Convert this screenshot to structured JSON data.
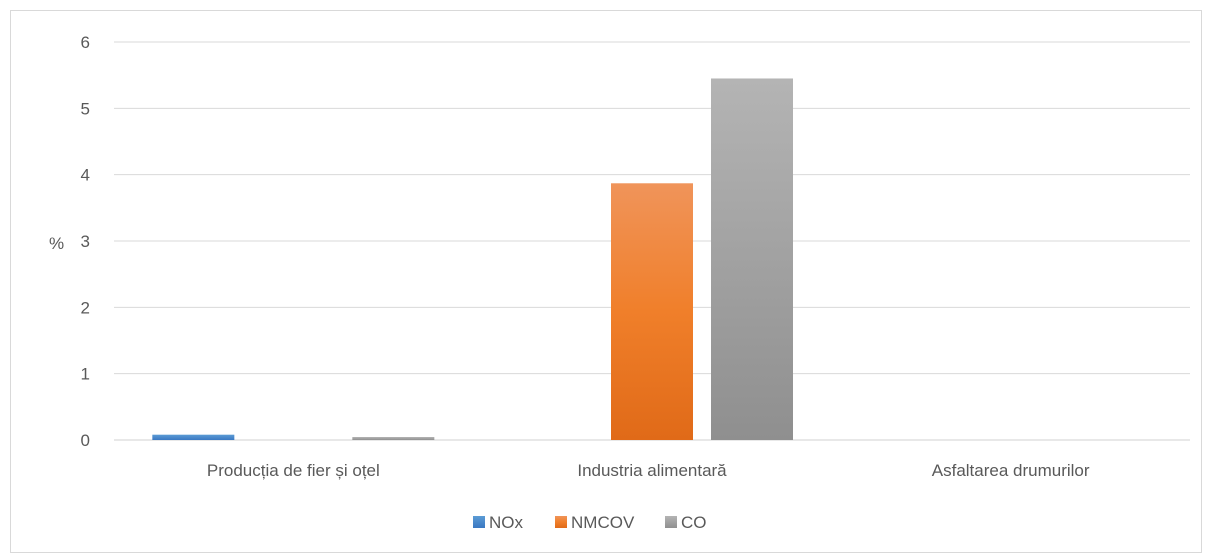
{
  "chart_data": {
    "type": "bar",
    "ylabel": "%",
    "ylim": [
      0,
      6
    ],
    "yticks": [
      0,
      1,
      2,
      3,
      4,
      5,
      6
    ],
    "categories": [
      "Producția de fier și oțel",
      "Industria alimentară",
      "Asfaltarea drumurilor"
    ],
    "series": [
      {
        "name": "NOx",
        "values": [
          0.08,
          0,
          0
        ],
        "color": "#4f8fd6"
      },
      {
        "name": "NMCOV",
        "values": [
          0,
          3.87,
          0
        ],
        "color": "#ed7d31"
      },
      {
        "name": "CO",
        "values": [
          0.01,
          5.45,
          0
        ],
        "color": "#a5a5a5"
      }
    ],
    "grid": true,
    "legend_position": "bottom"
  }
}
